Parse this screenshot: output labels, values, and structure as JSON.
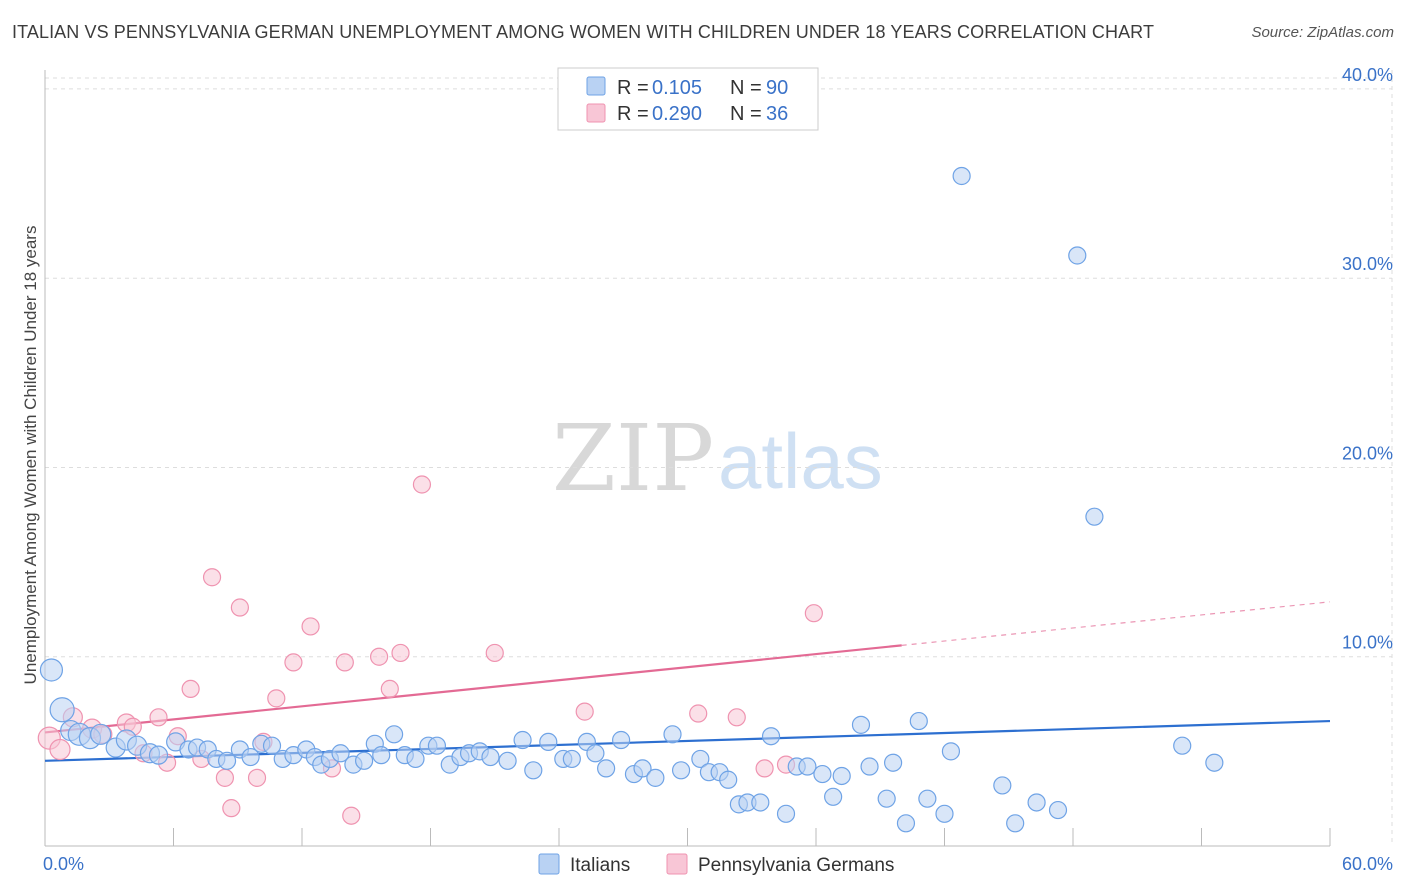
{
  "title": "ITALIAN VS PENNSYLVANIA GERMAN UNEMPLOYMENT AMONG WOMEN WITH CHILDREN UNDER 18 YEARS CORRELATION CHART",
  "source": "Source: ZipAtlas.com",
  "watermark": {
    "zip": "ZIP",
    "atlas": "atlas"
  },
  "colors": {
    "blue": "#6fa3e6",
    "blue_fill": "#b9d2f3",
    "blue_line": "#2d6fd0",
    "pink": "#ef93b0",
    "pink_fill": "#f8c6d6",
    "pink_line": "#e36a94",
    "tick": "#3a72c8",
    "grid": "#dddddd"
  },
  "legend": [
    {
      "r_label": "R =",
      "r_value": "0.105",
      "n_label": "N =",
      "n_value": "90"
    },
    {
      "r_label": "R =",
      "r_value": "0.290",
      "n_label": "N =",
      "n_value": "36"
    }
  ],
  "chart_data": {
    "type": "scatter",
    "title": "ITALIAN VS PENNSYLVANIA GERMAN UNEMPLOYMENT AMONG WOMEN WITH CHILDREN UNDER 18 YEARS CORRELATION CHART",
    "xlabel": "",
    "ylabel": "Unemployment Among Women with Children Under 18 years",
    "xlim": [
      0,
      60
    ],
    "ylim": [
      0,
      41
    ],
    "x_tick_labels": [
      "0.0%",
      "60.0%"
    ],
    "y_ticks": [
      10,
      20,
      30,
      40
    ],
    "y_tick_labels": [
      "10.0%",
      "20.0%",
      "30.0%",
      "40.0%"
    ],
    "grid": true,
    "legend_position": "top-center",
    "series": [
      {
        "name": "Italians",
        "color": "#6fa3e6",
        "trend": {
          "x0": 0,
          "y0": 4.5,
          "x1": 60,
          "y1": 6.6
        },
        "points": [
          [
            0.3,
            9.3,
            16
          ],
          [
            0.8,
            7.2,
            18
          ],
          [
            1.2,
            6.1,
            14
          ],
          [
            1.6,
            5.9,
            16
          ],
          [
            2.1,
            5.7,
            15
          ],
          [
            2.6,
            5.9,
            14
          ],
          [
            3.3,
            5.2,
            13
          ],
          [
            3.8,
            5.6,
            14
          ],
          [
            4.3,
            5.3,
            13
          ],
          [
            4.9,
            4.9,
            13
          ],
          [
            5.3,
            4.8,
            12
          ],
          [
            6.1,
            5.5,
            12
          ],
          [
            6.7,
            5.1,
            11
          ],
          [
            7.1,
            5.2,
            11
          ],
          [
            7.6,
            5.1,
            11
          ],
          [
            8.0,
            4.6,
            11
          ],
          [
            8.5,
            4.5,
            11
          ],
          [
            9.1,
            5.1,
            11
          ],
          [
            9.6,
            4.7,
            11
          ],
          [
            10.1,
            5.4,
            11
          ],
          [
            10.6,
            5.3,
            11
          ],
          [
            11.1,
            4.6,
            11
          ],
          [
            11.6,
            4.8,
            11
          ],
          [
            12.2,
            5.1,
            11
          ],
          [
            12.6,
            4.7,
            11
          ],
          [
            12.9,
            4.3,
            11
          ],
          [
            13.3,
            4.6,
            11
          ],
          [
            13.8,
            4.9,
            11
          ],
          [
            14.4,
            4.3,
            11
          ],
          [
            14.9,
            4.5,
            11
          ],
          [
            15.4,
            5.4,
            11
          ],
          [
            15.7,
            4.8,
            11
          ],
          [
            16.3,
            5.9,
            11
          ],
          [
            16.8,
            4.8,
            11
          ],
          [
            17.3,
            4.6,
            11
          ],
          [
            17.9,
            5.3,
            11
          ],
          [
            18.3,
            5.3,
            11
          ],
          [
            18.9,
            4.3,
            11
          ],
          [
            19.4,
            4.7,
            11
          ],
          [
            19.8,
            4.9,
            11
          ],
          [
            20.3,
            5.0,
            11
          ],
          [
            20.8,
            4.7,
            11
          ],
          [
            21.6,
            4.5,
            11
          ],
          [
            22.3,
            5.6,
            11
          ],
          [
            22.8,
            4.0,
            11
          ],
          [
            23.5,
            5.5,
            11
          ],
          [
            24.2,
            4.6,
            11
          ],
          [
            24.6,
            4.6,
            11
          ],
          [
            25.3,
            5.5,
            11
          ],
          [
            25.7,
            4.9,
            11
          ],
          [
            26.2,
            4.1,
            11
          ],
          [
            26.9,
            5.6,
            11
          ],
          [
            27.5,
            3.8,
            11
          ],
          [
            27.9,
            4.1,
            11
          ],
          [
            28.5,
            3.6,
            11
          ],
          [
            29.3,
            5.9,
            11
          ],
          [
            29.7,
            4.0,
            11
          ],
          [
            30.6,
            4.6,
            11
          ],
          [
            31.0,
            3.9,
            11
          ],
          [
            31.5,
            3.9,
            11
          ],
          [
            31.9,
            3.5,
            11
          ],
          [
            32.4,
            2.2,
            11
          ],
          [
            32.8,
            2.3,
            11
          ],
          [
            33.4,
            2.3,
            11
          ],
          [
            33.9,
            5.8,
            11
          ],
          [
            34.6,
            1.7,
            11
          ],
          [
            35.1,
            4.2,
            11
          ],
          [
            35.6,
            4.2,
            11
          ],
          [
            36.3,
            3.8,
            11
          ],
          [
            36.8,
            2.6,
            11
          ],
          [
            37.2,
            3.7,
            11
          ],
          [
            38.1,
            6.4,
            11
          ],
          [
            38.5,
            4.2,
            11
          ],
          [
            39.3,
            2.5,
            11
          ],
          [
            39.6,
            4.4,
            11
          ],
          [
            40.2,
            1.2,
            11
          ],
          [
            40.8,
            6.6,
            11
          ],
          [
            41.2,
            2.5,
            11
          ],
          [
            42.0,
            1.7,
            11
          ],
          [
            42.3,
            5.0,
            11
          ],
          [
            42.8,
            35.4,
            11
          ],
          [
            44.7,
            3.2,
            11
          ],
          [
            45.3,
            1.2,
            11
          ],
          [
            46.3,
            2.3,
            11
          ],
          [
            47.3,
            1.9,
            11
          ],
          [
            48.2,
            31.2,
            11
          ],
          [
            49.0,
            17.4,
            11
          ],
          [
            53.1,
            5.3,
            11
          ],
          [
            54.6,
            4.4,
            11
          ]
        ]
      },
      {
        "name": "Pennsylvania Germans",
        "color": "#ef93b0",
        "trend": {
          "x0": 0,
          "y0": 6.0,
          "x1": 40,
          "y1": 10.6
        },
        "trend_dashed": {
          "x0": 40,
          "y0": 10.6,
          "x1": 60,
          "y1": 12.9
        },
        "points": [
          [
            0.2,
            5.7,
            16
          ],
          [
            0.7,
            5.1,
            14
          ],
          [
            1.3,
            6.8,
            13
          ],
          [
            2.2,
            6.2,
            13
          ],
          [
            2.7,
            5.9,
            12
          ],
          [
            3.8,
            6.5,
            12
          ],
          [
            4.1,
            6.3,
            11
          ],
          [
            4.6,
            4.9,
            11
          ],
          [
            5.3,
            6.8,
            11
          ],
          [
            5.7,
            4.4,
            11
          ],
          [
            6.2,
            5.8,
            11
          ],
          [
            6.8,
            8.3,
            11
          ],
          [
            7.3,
            4.6,
            11
          ],
          [
            7.8,
            14.2,
            11
          ],
          [
            8.4,
            3.6,
            11
          ],
          [
            8.7,
            2.0,
            11
          ],
          [
            9.1,
            12.6,
            11
          ],
          [
            9.9,
            3.6,
            11
          ],
          [
            10.2,
            5.5,
            11
          ],
          [
            10.8,
            7.8,
            11
          ],
          [
            11.6,
            9.7,
            11
          ],
          [
            12.4,
            11.6,
            11
          ],
          [
            13.4,
            4.1,
            11
          ],
          [
            14.0,
            9.7,
            11
          ],
          [
            14.3,
            1.6,
            11
          ],
          [
            15.6,
            10.0,
            11
          ],
          [
            16.1,
            8.3,
            11
          ],
          [
            16.6,
            10.2,
            11
          ],
          [
            17.6,
            19.1,
            11
          ],
          [
            21.0,
            10.2,
            11
          ],
          [
            25.2,
            7.1,
            11
          ],
          [
            30.5,
            7.0,
            11
          ],
          [
            32.3,
            6.8,
            11
          ],
          [
            33.6,
            4.1,
            11
          ],
          [
            34.6,
            4.3,
            11
          ],
          [
            35.9,
            12.3,
            11
          ]
        ]
      }
    ]
  }
}
